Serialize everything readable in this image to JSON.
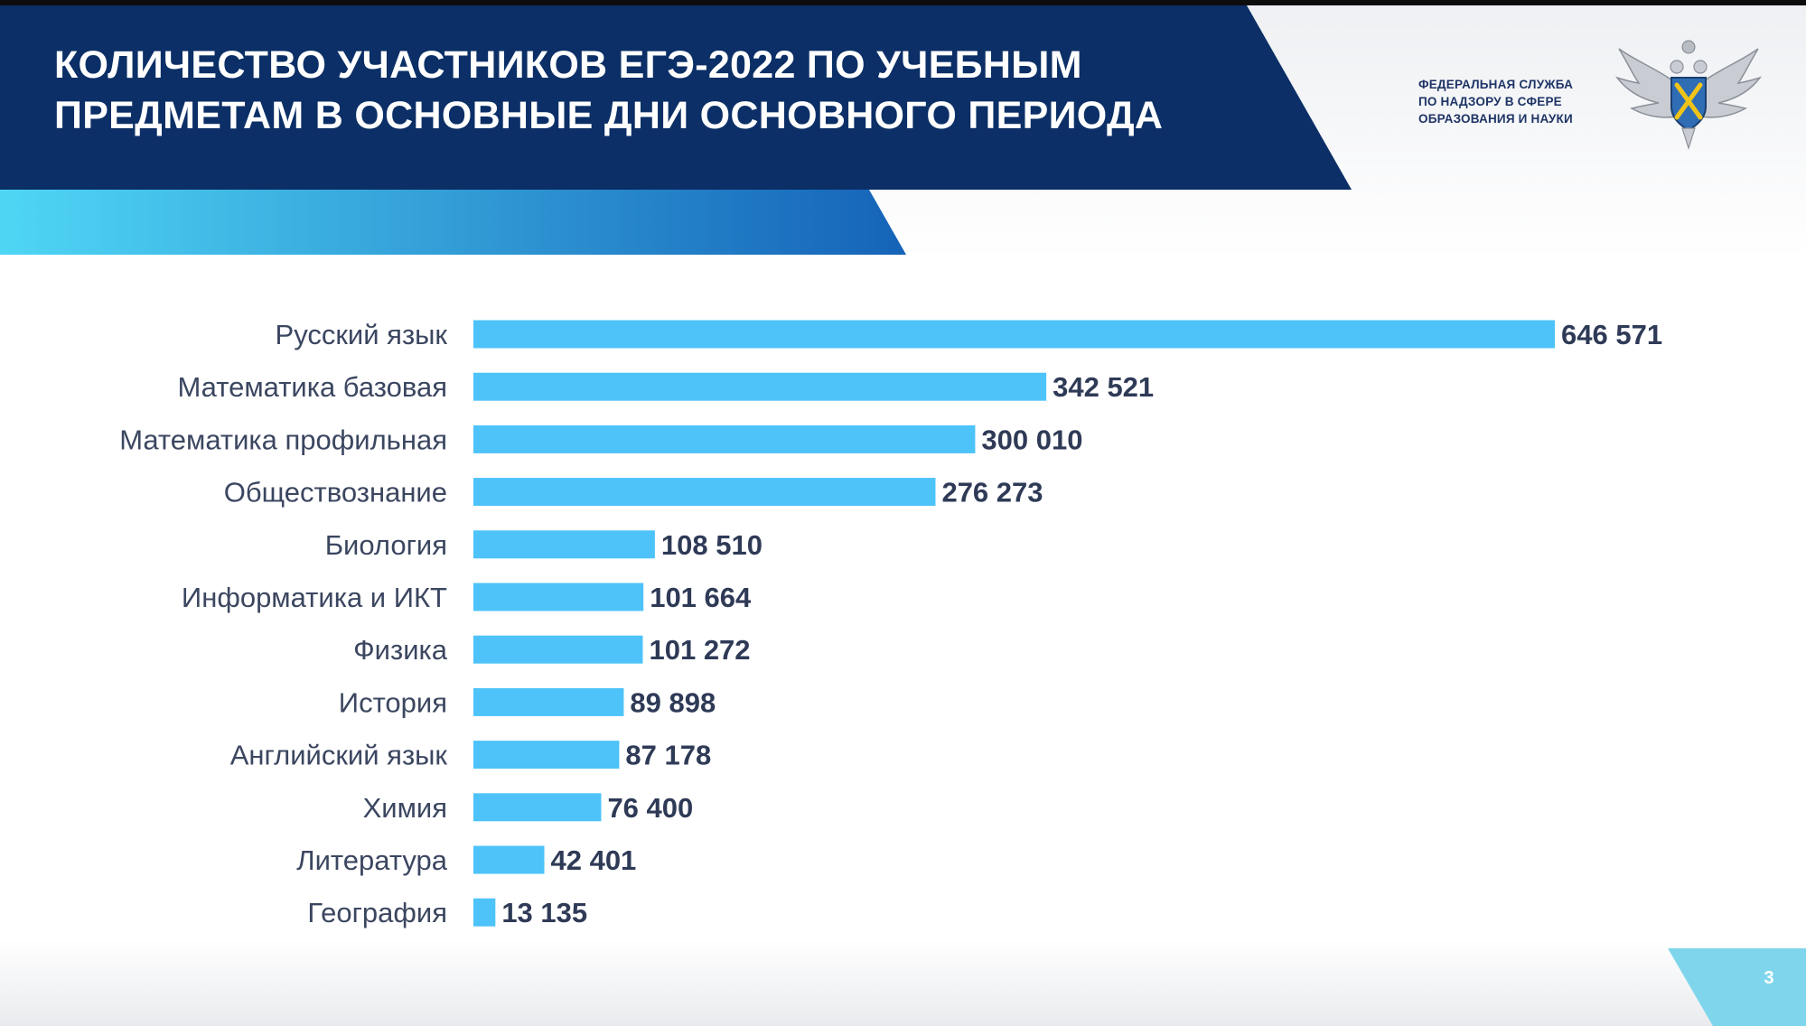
{
  "header": {
    "title_lines": [
      "КОЛИЧЕСТВО УЧАСТНИКОВ ЕГЭ-2022 ПО УЧЕБНЫМ",
      "ПРЕДМЕТАМ В ОСНОВНЫЕ ДНИ ОСНОВНОГО ПЕРИОДА"
    ],
    "org_lines": [
      "ФЕДЕРАЛЬНАЯ СЛУЖБА",
      "ПО НАДЗОРУ В СФЕРЕ",
      "ОБРАЗОВАНИЯ И НАУКИ"
    ],
    "emblem_icon": "double-headed-eagle-emblem-icon"
  },
  "colors": {
    "title_band": "#0b2f66",
    "accent_band_start": "#4fd6f5",
    "accent_band_end": "#1563b8",
    "bar": "#4dc3fa",
    "value_text": "#2e3a56",
    "category_text": "#3b4660",
    "page_corner": "#7fd6ec"
  },
  "chart_data": {
    "type": "bar",
    "orientation": "horizontal",
    "categories": [
      "Русский язык",
      "Математика базовая",
      "Математика профильная",
      "Обществознание",
      "Биология",
      "Информатика и ИКТ",
      "Физика",
      "История",
      "Английский язык",
      "Химия",
      "Литература",
      "География"
    ],
    "values": [
      646571,
      342521,
      300010,
      276273,
      108510,
      101664,
      101272,
      89898,
      87178,
      76400,
      42401,
      13135
    ],
    "value_labels": [
      "646 571",
      "342 521",
      "300 010",
      "276 273",
      "108 510",
      "101 664",
      "101 272",
      "89 898",
      "87 178",
      "76 400",
      "42 401",
      "13 135"
    ],
    "xlim": [
      0,
      646571
    ],
    "grid": false,
    "legend": "none"
  },
  "footer": {
    "page_number": "3"
  }
}
